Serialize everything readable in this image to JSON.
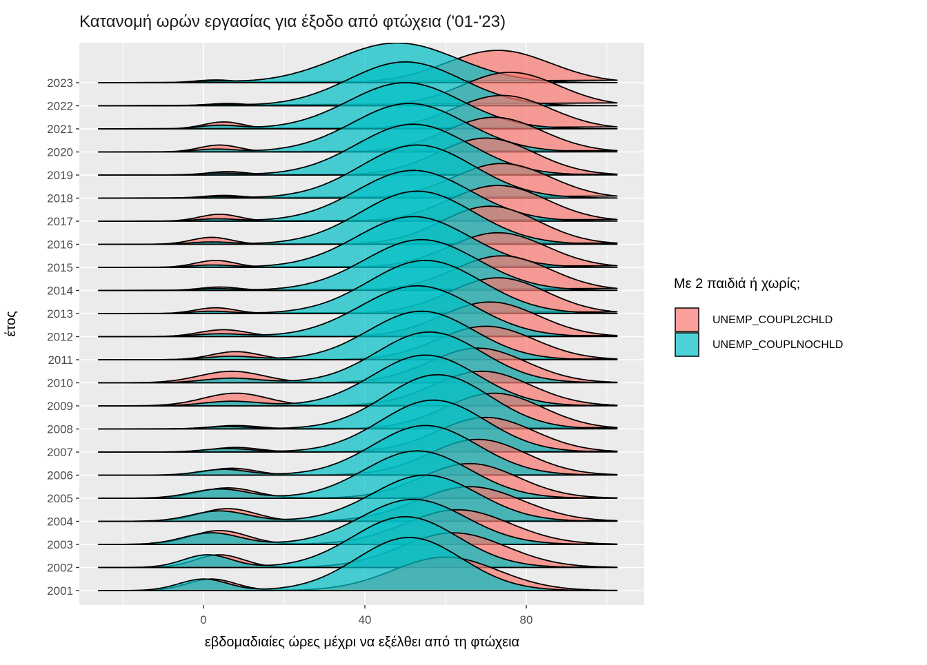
{
  "title": "Κατανομή ωρών εργασίας για έξοδο από φτώχεια ('01-'23)",
  "axes": {
    "x_label": "εβδομαδιαίες ώρες μέχρι να εξέλθει από τη φτώχεια",
    "y_label": "έτος"
  },
  "legend": {
    "title": "Με 2 παιδιά ή χωρίς;",
    "items": [
      {
        "label": "UNEMP_COUPL2CHLD",
        "color": "#F8766D"
      },
      {
        "label": "UNEMP_COUPLNOCHLD",
        "color": "#00BFC4"
      }
    ]
  },
  "colors": {
    "panel_background": "#EBEBEB",
    "gridline": "#FFFFFF",
    "ridge_outline": "#000000",
    "tick_mark": "#333333",
    "tick_label": "#4D4D4D",
    "title_text": "#1A1A1A"
  },
  "chart_data": {
    "type": "ridgeline",
    "title": "Κατανομή ωρών εργασίας για έξοδο από φτώχεια ('01-'23)",
    "xlabel": "εβδομαδιαίες ώρες μέχρι να εξέλθει από τη φτώχεια",
    "ylabel": "έτος",
    "legend_title": "Με 2 παιδιά ή χωρίς;",
    "legend_position": "right",
    "grid": true,
    "alpha": 0.7,
    "x_domain": [
      -26,
      102.5
    ],
    "x_major_ticks": [
      0,
      40,
      80
    ],
    "x_minor_ticks": [
      -20,
      20,
      60,
      100
    ],
    "years": [
      2001,
      2002,
      2003,
      2004,
      2005,
      2006,
      2007,
      2008,
      2009,
      2010,
      2011,
      2012,
      2013,
      2014,
      2015,
      2016,
      2017,
      2018,
      2019,
      2020,
      2021,
      2022,
      2023
    ],
    "density_model": "sum of gaussian components [mean_hours, sd_hours, peak_height_in_row_units], one list per year (aligned with years array)",
    "series": [
      {
        "name": "UNEMP_COUPL2CHLD",
        "color": "#F8766D",
        "mixtures": [
          [
            [
              2,
              6,
              0.5
            ],
            [
              60,
              13,
              1.45
            ]
          ],
          [
            [
              4,
              6,
              0.55
            ],
            [
              62,
              13,
              1.5
            ]
          ],
          [
            [
              4,
              7,
              0.6
            ],
            [
              63,
              13,
              1.5
            ]
          ],
          [
            [
              6,
              7,
              0.55
            ],
            [
              66,
              13,
              1.5
            ]
          ],
          [
            [
              6,
              7,
              0.45
            ],
            [
              66,
              12,
              1.5
            ]
          ],
          [
            [
              7,
              6,
              0.3
            ],
            [
              68,
              12,
              1.55
            ]
          ],
          [
            [
              8,
              6,
              0.2
            ],
            [
              70,
              12,
              1.5
            ]
          ],
          [
            [
              8,
              6,
              0.15
            ],
            [
              72,
              12,
              1.55
            ]
          ],
          [
            [
              8,
              8,
              0.55
            ],
            [
              69,
              12,
              1.5
            ]
          ],
          [
            [
              7,
              8,
              0.5
            ],
            [
              68,
              12,
              1.5
            ]
          ],
          [
            [
              8,
              6,
              0.35
            ],
            [
              70,
              12,
              1.45
            ]
          ],
          [
            [
              5,
              6,
              0.3
            ],
            [
              71,
              12,
              1.5
            ]
          ],
          [
            [
              3,
              5,
              0.25
            ],
            [
              73,
              12,
              1.55
            ]
          ],
          [
            [
              4,
              5,
              0.15
            ],
            [
              74,
              12,
              1.5
            ]
          ],
          [
            [
              3,
              5,
              0.3
            ],
            [
              73,
              12,
              1.5
            ]
          ],
          [
            [
              2,
              5,
              0.3
            ],
            [
              71,
              12,
              1.65
            ]
          ],
          [
            [
              4,
              5,
              0.3
            ],
            [
              73,
              12,
              1.55
            ]
          ],
          [
            [
              5,
              5,
              0.12
            ],
            [
              74,
              12,
              1.5
            ]
          ],
          [
            [
              6,
              5,
              0.15
            ],
            [
              70,
              12,
              1.6
            ]
          ],
          [
            [
              4,
              5,
              0.3
            ],
            [
              72,
              12,
              1.5
            ]
          ],
          [
            [
              5,
              5,
              0.3
            ],
            [
              74,
              12,
              1.45
            ]
          ],
          [
            [
              6,
              5,
              0.1
            ],
            [
              76,
              12,
              1.45
            ]
          ],
          [
            [
              3,
              5,
              0.12
            ],
            [
              73,
              13,
              1.4
            ]
          ]
        ]
      },
      {
        "name": "UNEMP_COUPLNOCHLD",
        "color": "#00BFC4",
        "mixtures": [
          [
            [
              0,
              6,
              0.5
            ],
            [
              51,
              13,
              2.3
            ]
          ],
          [
            [
              1,
              6,
              0.55
            ],
            [
              50,
              13,
              2.2
            ]
          ],
          [
            [
              2,
              7,
              0.5
            ],
            [
              52,
              13,
              1.95
            ]
          ],
          [
            [
              4,
              7,
              0.45
            ],
            [
              55,
              13,
              2.0
            ]
          ],
          [
            [
              4,
              7,
              0.4
            ],
            [
              53,
              13,
              2.05
            ]
          ],
          [
            [
              5,
              6,
              0.25
            ],
            [
              55,
              13,
              2.15
            ]
          ],
          [
            [
              6,
              6,
              0.15
            ],
            [
              57,
              13,
              2.25
            ]
          ],
          [
            [
              6,
              6,
              0.1
            ],
            [
              58,
              13,
              2.35
            ]
          ],
          [
            [
              7,
              7,
              0.2
            ],
            [
              55,
              13,
              2.2
            ]
          ],
          [
            [
              7,
              7,
              0.2
            ],
            [
              56,
              13,
              2.2
            ]
          ],
          [
            [
              7,
              6,
              0.15
            ],
            [
              54,
              13,
              2.1
            ]
          ],
          [
            [
              4,
              6,
              0.12
            ],
            [
              53,
              14,
              2.2
            ]
          ],
          [
            [
              2,
              5,
              0.1
            ],
            [
              55,
              14,
              2.3
            ]
          ],
          [
            [
              3,
              5,
              0.08
            ],
            [
              54,
              14,
              2.2
            ]
          ],
          [
            [
              2,
              5,
              0.1
            ],
            [
              52,
              14,
              2.2
            ]
          ],
          [
            [
              2,
              5,
              0.1
            ],
            [
              53,
              14,
              2.3
            ]
          ],
          [
            [
              3,
              5,
              0.1
            ],
            [
              52,
              14,
              2.2
            ]
          ],
          [
            [
              3,
              5,
              0.06
            ],
            [
              53,
              14,
              2.3
            ]
          ],
          [
            [
              4,
              5,
              0.08
            ],
            [
              52,
              14,
              2.2
            ]
          ],
          [
            [
              3,
              5,
              0.12
            ],
            [
              51,
              14,
              2.1
            ]
          ],
          [
            [
              4,
              5,
              0.15
            ],
            [
              50,
              14,
              2.0
            ]
          ],
          [
            [
              4,
              5,
              0.06
            ],
            [
              50,
              14,
              1.9
            ]
          ],
          [
            [
              2,
              5,
              0.06
            ],
            [
              48,
              15,
              1.72
            ]
          ]
        ]
      }
    ]
  }
}
